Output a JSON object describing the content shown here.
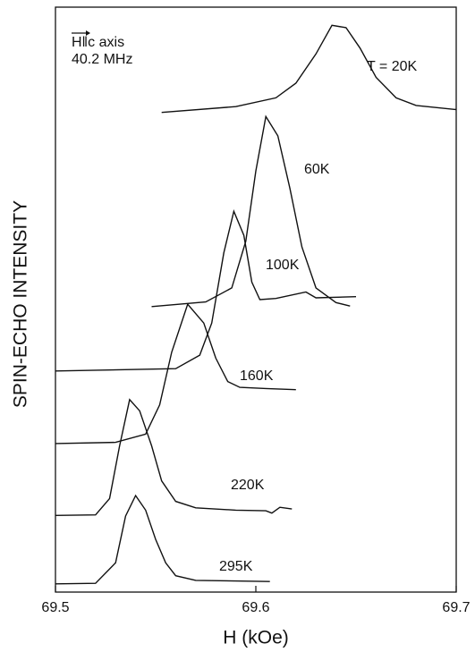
{
  "chart_data": {
    "type": "line",
    "x_label": "H (kOe)",
    "y_label": "SPIN-ECHO INTENSITY",
    "annotations": [
      "H‖c axis",
      "40.2 MHz"
    ],
    "xlim": [
      69.5,
      69.7
    ],
    "xticks": [
      69.5,
      69.6,
      69.7
    ],
    "ylim": [
      0,
      100
    ],
    "series": [
      {
        "name": "T = 20K",
        "color": "#111111",
        "x": [
          69.553,
          69.59,
          69.61,
          69.62,
          69.63,
          69.638,
          69.645,
          69.652,
          69.66,
          69.67,
          69.68,
          69.7
        ],
        "values": [
          82,
          83,
          84.5,
          87,
          92,
          96.9,
          96.5,
          93,
          88,
          84.5,
          83.2,
          82.5
        ]
      },
      {
        "name": "60K",
        "color": "#111111",
        "x": [
          69.548,
          69.575,
          69.588,
          69.595,
          69.6,
          69.605,
          69.611,
          69.617,
          69.623,
          69.63,
          69.64,
          69.647
        ],
        "values": [
          48.8,
          49.6,
          52,
          60,
          72,
          81.3,
          78,
          69,
          59,
          52,
          49.5,
          48.9
        ]
      },
      {
        "name": "100K",
        "color": "#111111",
        "x": [
          69.5,
          69.56,
          69.572,
          69.578,
          69.584,
          69.589,
          69.594,
          69.598,
          69.602,
          69.61,
          69.625,
          69.63,
          69.65
        ],
        "values": [
          37.8,
          38.2,
          40.5,
          46,
          58,
          65.1,
          61,
          53,
          50,
          50.2,
          51.3,
          50.3,
          50.5
        ]
      },
      {
        "name": "160K",
        "color": "#111111",
        "x": [
          69.5,
          69.53,
          69.545,
          69.552,
          69.558,
          69.566,
          69.574,
          69.58,
          69.586,
          69.592,
          69.605,
          69.62
        ],
        "values": [
          25.4,
          25.6,
          27,
          32,
          41,
          49.2,
          46,
          40,
          36,
          35,
          34.8,
          34.6
        ]
      },
      {
        "name": "220K",
        "color": "#111111",
        "x": [
          69.5,
          69.52,
          69.527,
          69.532,
          69.537,
          69.542,
          69.548,
          69.553,
          69.56,
          69.57,
          69.59,
          69.605,
          69.608,
          69.612,
          69.618
        ],
        "values": [
          13.1,
          13.2,
          16,
          25,
          32.9,
          31,
          25,
          19,
          15.5,
          14.4,
          14,
          13.9,
          13.5,
          14.5,
          14.2
        ]
      },
      {
        "name": "295K",
        "color": "#111111",
        "x": [
          69.5,
          69.52,
          69.53,
          69.535,
          69.54,
          69.545,
          69.55,
          69.555,
          69.56,
          69.57,
          69.607
        ],
        "values": [
          1.4,
          1.5,
          5,
          13,
          16.5,
          14,
          9,
          5,
          2.8,
          2,
          1.8
        ]
      }
    ]
  }
}
